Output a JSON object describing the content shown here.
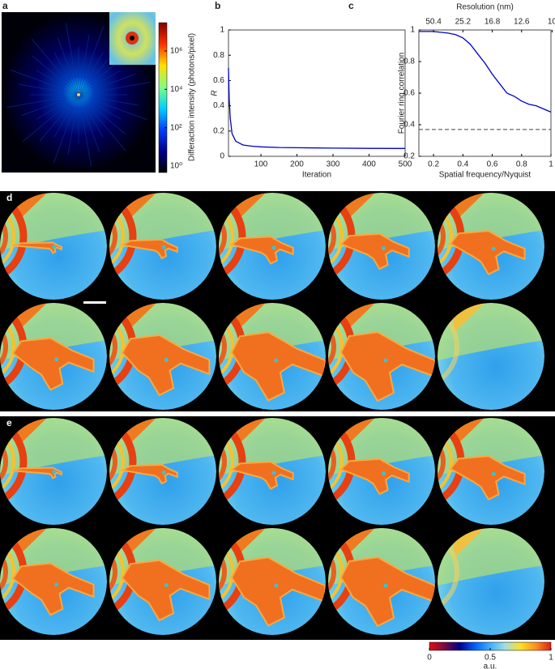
{
  "chart_data": [
    {
      "panel": "a",
      "type": "image",
      "colorbar_label": "Differaction intensity (photons/pixel)",
      "colorbar_scale": "log",
      "clim": [
        0.46,
        30000000
      ],
      "colorbar_ticks": [
        {
          "value": 1,
          "label": "10⁰"
        },
        {
          "value": 100,
          "label": "10²"
        },
        {
          "value": 10000,
          "label": "10⁴"
        },
        {
          "value": 1000000,
          "label": "10⁶"
        }
      ],
      "colors": [
        "#000000",
        "#00008f",
        "#0040ff",
        "#00d0ff",
        "#80ff80",
        "#ffe000",
        "#ff3000",
        "#800000"
      ]
    },
    {
      "panel": "b",
      "type": "line",
      "xlabel": "Iteration",
      "ylabel": "R",
      "x": [
        10,
        12,
        15,
        20,
        30,
        50,
        75,
        100,
        150,
        200,
        300,
        400,
        500
      ],
      "values": [
        0.7,
        0.45,
        0.3,
        0.18,
        0.12,
        0.09,
        0.08,
        0.075,
        0.07,
        0.068,
        0.065,
        0.063,
        0.062
      ],
      "color": "#0000cc",
      "xlim": [
        10,
        500
      ],
      "ylim": [
        0,
        1
      ],
      "xticks": [
        100,
        200,
        300,
        400,
        500
      ],
      "yticks": [
        0,
        0.2,
        0.4,
        0.6,
        0.8,
        1
      ]
    },
    {
      "panel": "c",
      "type": "line",
      "xlabel": "Spatial frequency/Nyquist",
      "ylabel": "Fourier ring correlation",
      "x2label": "Resolution (nm)",
      "x": [
        0.1,
        0.2,
        0.3,
        0.35,
        0.4,
        0.45,
        0.5,
        0.55,
        0.6,
        0.65,
        0.7,
        0.75,
        0.8,
        0.85,
        0.9,
        0.95,
        1
      ],
      "values": [
        0.99,
        0.99,
        0.98,
        0.97,
        0.95,
        0.91,
        0.85,
        0.79,
        0.72,
        0.66,
        0.6,
        0.58,
        0.55,
        0.53,
        0.52,
        0.5,
        0.48
      ],
      "color": "#0000cc",
      "xlim": [
        0.1,
        1
      ],
      "ylim": [
        0.2,
        1
      ],
      "xticks": [
        0.2,
        0.4,
        0.6,
        0.8,
        1
      ],
      "yticks": [
        0.2,
        0.4,
        0.6,
        0.8,
        1
      ],
      "x2lim": [
        100.8,
        10.08
      ],
      "x2scale": "reciprocal",
      "x2ticks": [
        50.4,
        25.2,
        16.8,
        12.6,
        10
      ],
      "reference_line": {
        "value": 0.37,
        "color": "#444444",
        "dashed": true
      }
    },
    {
      "panel": "d",
      "type": "image_grid",
      "rows": 2,
      "cols": 5,
      "scale_bar": true
    },
    {
      "panel": "e",
      "type": "image_grid",
      "rows": 2,
      "cols": 5,
      "scale_bar": false
    },
    {
      "type": "colorbar",
      "lim": [
        0,
        1
      ],
      "ticks": [
        0,
        0.5,
        1
      ],
      "label": "a.u.",
      "colors": [
        "#e01010",
        "#7a0a40",
        "#00008b",
        "#0060ff",
        "#40b0ff",
        "#a0e0e0",
        "#ffe020",
        "#ff9020",
        "#e02010"
      ]
    }
  ]
}
